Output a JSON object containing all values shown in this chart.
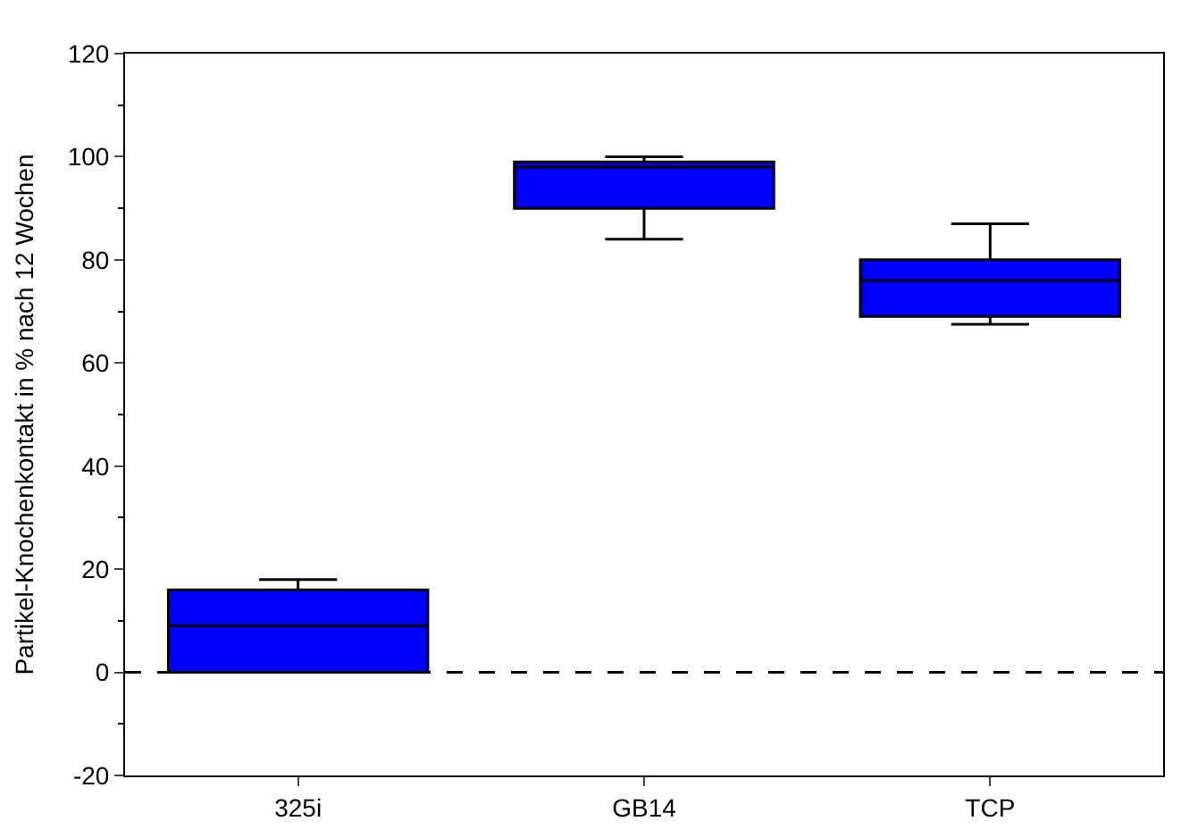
{
  "chart_data": {
    "type": "box",
    "ylabel": "Partikel-Knochenkontakt in % nach 12 Wochen",
    "categories": [
      "325i",
      "GB14",
      "TCP"
    ],
    "boxes": [
      {
        "low": 0,
        "q1": 0,
        "median": 9,
        "q3": 16,
        "high": 18
      },
      {
        "low": 84,
        "q1": 90,
        "median": 98,
        "q3": 99,
        "high": 100
      },
      {
        "low": 67.5,
        "q1": 69,
        "median": 76,
        "q3": 80,
        "high": 87
      }
    ],
    "color": "#0000ff",
    "ylim": [
      -20,
      120
    ],
    "yticks": [
      -20,
      0,
      20,
      40,
      60,
      80,
      100,
      120
    ],
    "ref_lines": [
      {
        "axis": "y",
        "value": 0,
        "line_style": "dashed",
        "color": "#000000"
      }
    ]
  }
}
